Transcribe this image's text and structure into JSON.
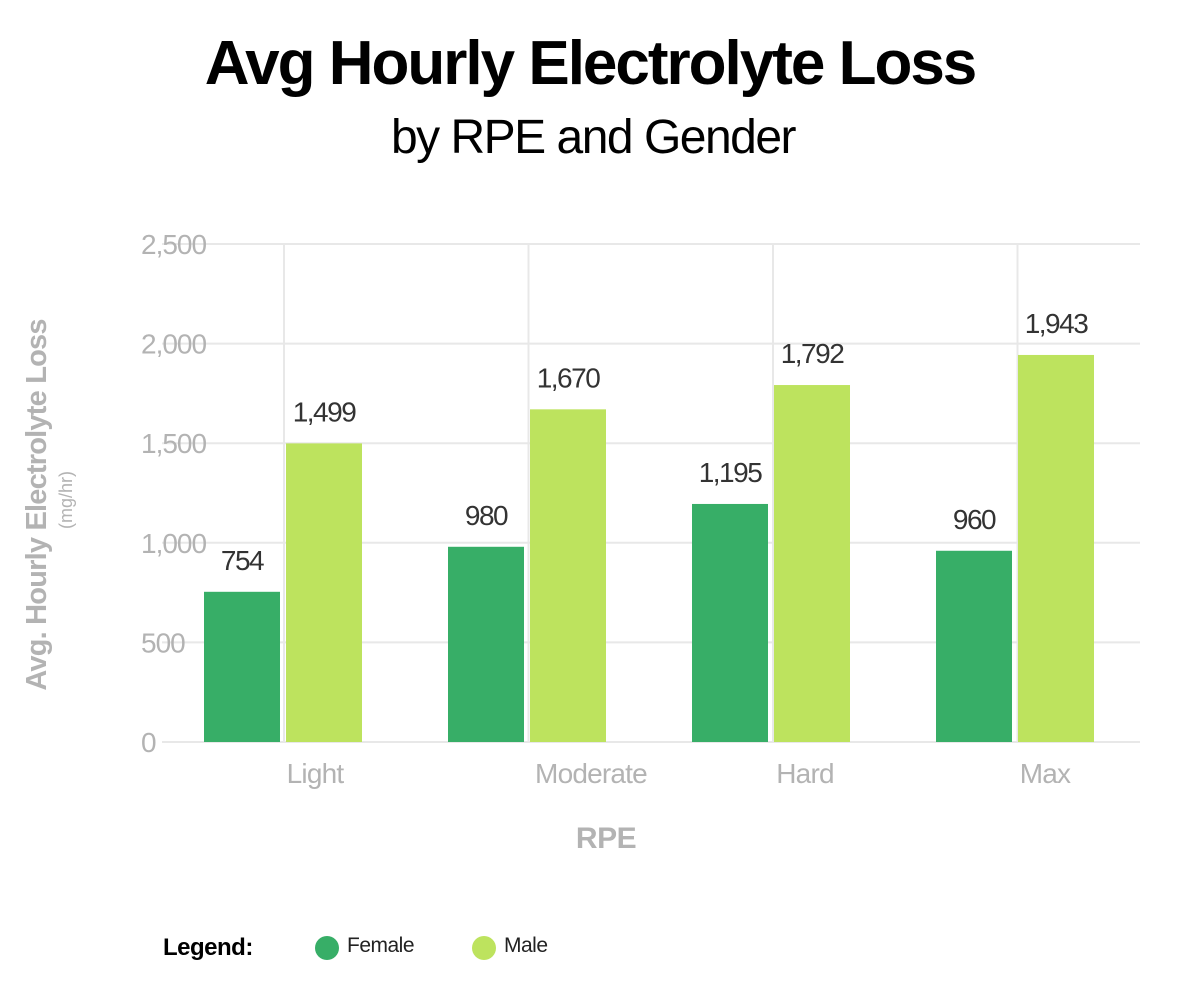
{
  "title": "Avg Hourly Electrolyte Loss",
  "subtitle": "by RPE and Gender",
  "colors": {
    "female": "#37ae67",
    "male": "#bde35e",
    "grid": "#e8e8e8",
    "axis_text": "#b3b3b3",
    "data_label": "#333333"
  },
  "legend": {
    "title": "Legend:",
    "items": [
      {
        "label": "Female",
        "color": "#37ae67"
      },
      {
        "label": "Male",
        "color": "#bde35e"
      }
    ]
  },
  "chart_data": {
    "type": "bar",
    "title": "Avg Hourly Electrolyte Loss",
    "subtitle": "by RPE and Gender",
    "categories": [
      "Light",
      "Moderate",
      "Hard",
      "Max"
    ],
    "series": [
      {
        "name": "Female",
        "values": [
          754,
          980,
          1195,
          960
        ],
        "labels": [
          "754",
          "980",
          "1,195",
          "960"
        ]
      },
      {
        "name": "Male",
        "values": [
          1499,
          1670,
          1792,
          1943
        ],
        "labels": [
          "1,499",
          "1,670",
          "1,792",
          "1,943"
        ]
      }
    ],
    "xlabel": "RPE",
    "ylabel": "Avg. Hourly Electrolyte Loss",
    "ylabel_unit": "(mg/hr)",
    "ylim": [
      0,
      2500
    ],
    "yticks": [
      0,
      500,
      1000,
      1500,
      2000,
      2500
    ],
    "ytick_labels": [
      "0",
      "500",
      "1,000",
      "1,500",
      "2,000",
      "2,500"
    ],
    "grid": true,
    "legend_position": "bottom-left"
  }
}
